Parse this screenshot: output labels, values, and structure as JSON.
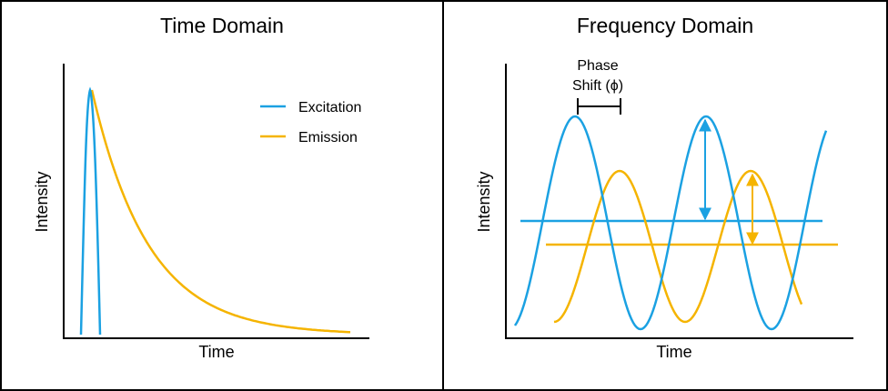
{
  "colors": {
    "excitation": "#1ba1e2",
    "emission": "#f5b400",
    "axis": "#000000"
  },
  "panels": {
    "time_domain": {
      "title": "Time Domain",
      "xlabel": "Time",
      "ylabel": "Intensity"
    },
    "frequency_domain": {
      "title": "Frequency Domain",
      "xlabel": "Time",
      "ylabel": "Intensity",
      "annotation_line1": "Phase",
      "annotation_line2": "Shift (ϕ)"
    }
  },
  "legend": {
    "excitation_label": "Excitation",
    "emission_label": "Emission"
  }
}
